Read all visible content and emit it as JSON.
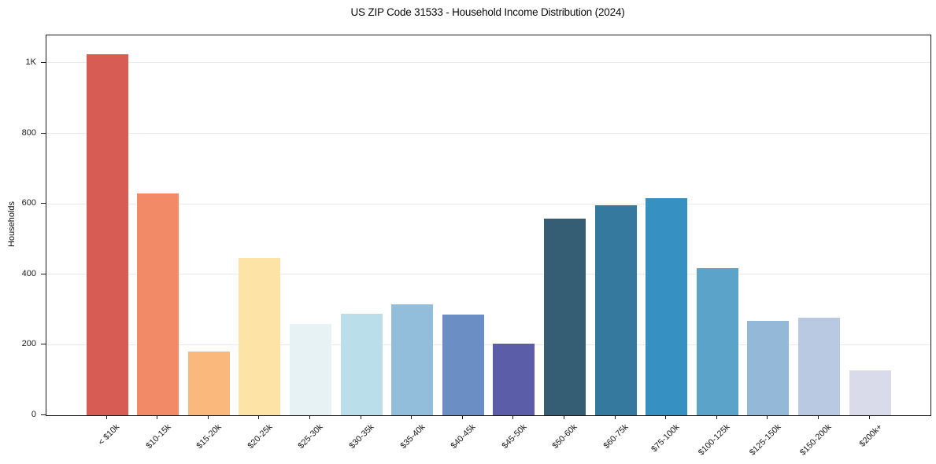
{
  "figure": {
    "background": "#ffffff"
  },
  "chart_data": {
    "type": "bar",
    "title": "US ZIP Code 31533 - Household Income Distribution (2024)",
    "xlabel": "",
    "ylabel": "Households",
    "categories": [
      "< $10k",
      "$10-15k",
      "$15-20k",
      "$20-25k",
      "$25-30k",
      "$30-35k",
      "$35-40k",
      "$40-45k",
      "$45-50k",
      "$50-60k",
      "$60-75k",
      "$75-100k",
      "$100-125k",
      "$125-150k",
      "$150-200k",
      "$200k+"
    ],
    "values": [
      1025,
      630,
      181,
      447,
      258,
      288,
      315,
      285,
      204,
      557,
      597,
      617,
      418,
      268,
      276,
      127
    ],
    "bar_colors": [
      "#d75c53",
      "#f28a68",
      "#fab87d",
      "#fde3a6",
      "#e6f2f4",
      "#bbdfea",
      "#92bedb",
      "#6b8fc5",
      "#5c5da9",
      "#355e74",
      "#35799e",
      "#3790c2",
      "#5ba3c8",
      "#93b8d8",
      "#b9c9e1",
      "#dadbea"
    ],
    "yticks": [
      {
        "value": 0,
        "label": "0"
      },
      {
        "value": 200,
        "label": "200"
      },
      {
        "value": 400,
        "label": "400"
      },
      {
        "value": 600,
        "label": "600"
      },
      {
        "value": 800,
        "label": "800"
      },
      {
        "value": 1000,
        "label": "1K"
      }
    ],
    "ylim": [
      0,
      1078
    ],
    "grid": "horizontal",
    "legend": "none",
    "x_tick_rotation": 45
  },
  "style": {
    "axis_color": "#1a1a1a",
    "grid_color": "#eaeaea",
    "text_color": "#1a1a1a"
  }
}
